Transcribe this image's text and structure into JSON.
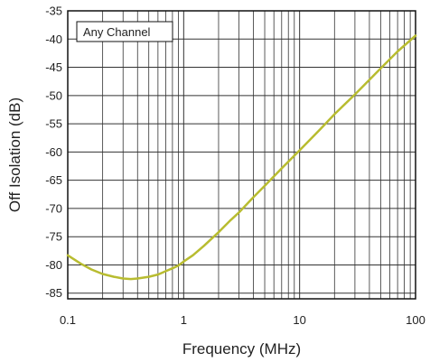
{
  "chart_data": {
    "type": "line",
    "xlabel": "Frequency (MHz)",
    "ylabel": "Off Isolation (dB)",
    "x_scale": "log",
    "xlim": [
      0.1,
      100
    ],
    "ylim": [
      -86,
      -35
    ],
    "grid": true,
    "x_tick_labels": [
      "0.1",
      "1",
      "10",
      "100"
    ],
    "y_tick_labels": [
      "-35",
      "-40",
      "-45",
      "-50",
      "-55",
      "-60",
      "-65",
      "-70",
      "-75",
      "-80",
      "-85"
    ],
    "annotation": "Any Channel",
    "line_color": "#b8bc30",
    "series": [
      {
        "x": [
          0.1,
          0.13,
          0.16,
          0.2,
          0.25,
          0.3,
          0.35,
          0.4,
          0.5,
          0.6,
          0.7,
          0.8,
          0.9,
          1.0,
          1.2,
          1.5,
          2,
          2.5,
          3,
          4,
          5,
          7,
          10,
          15,
          20,
          30,
          50,
          70,
          100
        ],
        "y": [
          -78.3,
          -79.8,
          -80.8,
          -81.6,
          -82.1,
          -82.4,
          -82.5,
          -82.4,
          -82.1,
          -81.7,
          -81.1,
          -80.6,
          -80.1,
          -79.4,
          -78.3,
          -76.6,
          -74.2,
          -72.2,
          -70.7,
          -68.0,
          -66.0,
          -62.9,
          -59.7,
          -56.0,
          -53.3,
          -49.8,
          -45.2,
          -42.2,
          -39.4
        ]
      }
    ]
  }
}
